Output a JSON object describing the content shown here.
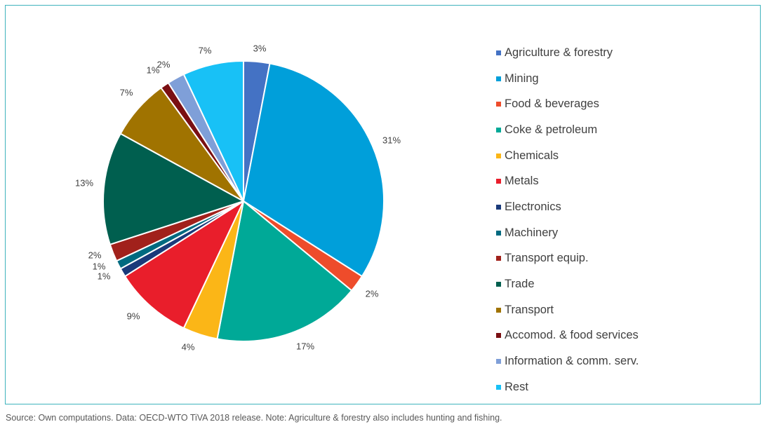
{
  "chart_data": {
    "type": "pie",
    "categories": [
      "Agriculture & forestry",
      "Mining",
      "Food & beverages",
      "Coke & petroleum",
      "Chemicals",
      "Metals",
      "Electronics",
      "Machinery",
      "Transport equip.",
      "Trade",
      "Transport",
      "Accomod. & food services",
      "Information & comm. serv.",
      "Rest"
    ],
    "values": [
      3,
      31,
      2,
      17,
      4,
      9,
      1,
      1,
      2,
      13,
      7,
      1,
      2,
      7
    ],
    "data_labels": [
      "3%",
      "31%",
      "2%",
      "17%",
      "4%",
      "9%",
      "1%",
      "1%",
      "2%",
      "13%",
      "7%",
      "1%",
      "2%",
      "7%"
    ],
    "colors": [
      "#4472c4",
      "#009fda",
      "#ee4c2b",
      "#00a997",
      "#fbb617",
      "#e91e2b",
      "#1a3a7a",
      "#006a80",
      "#a1211b",
      "#005f4f",
      "#a07300",
      "#7a0f12",
      "#7f9fd8",
      "#18c1f6"
    ],
    "legend_position": "right",
    "title": ""
  },
  "footer": {
    "source": "Source: Own computations. Data: OECD-WTO TiVA 2018 release. Note: Agriculture & forestry also includes hunting and fishing."
  }
}
